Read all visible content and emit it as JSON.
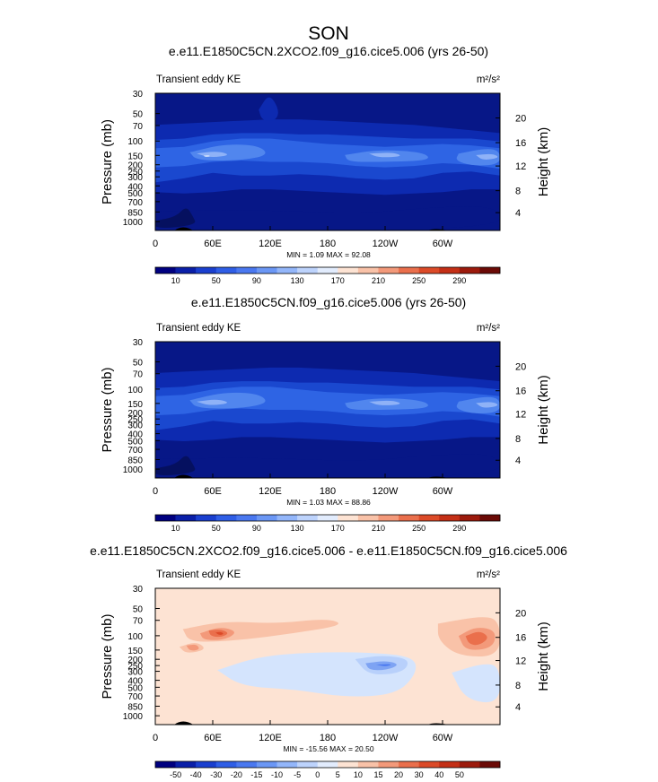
{
  "figure": {
    "season": "SON"
  },
  "chart_data": [
    {
      "type": "heatmap",
      "title": "e.e11.E1850C5CN.2XCO2.f09_g16.cice5.006 (yrs 26-50)",
      "left_label": "Transient eddy KE",
      "units": "m²/s²",
      "ylabel": "Pressure (mb)",
      "ylabel_right": "Height (km)",
      "x_ticks": [
        "0",
        "60E",
        "120E",
        "180",
        "120W",
        "60W"
      ],
      "y_ticks": [
        "30",
        "50",
        "70",
        "100",
        "150",
        "200",
        "250",
        "300",
        "400",
        "500",
        "700",
        "850",
        "1000"
      ],
      "y2_ticks": [
        "20",
        "16",
        "12",
        "8",
        "4"
      ],
      "stats": "MIN =   1.09  MAX =  92.08",
      "min": 1.09,
      "max": 92.08,
      "colorbar_labels": [
        "10",
        "50",
        "90",
        "130",
        "170",
        "210",
        "250",
        "290"
      ],
      "colorbar_colors": [
        "#000080",
        "#0a1fa8",
        "#1a3fcf",
        "#2f5ee6",
        "#4a78f0",
        "#6b97f5",
        "#93b6fa",
        "#bdd3fc",
        "#e2ecfd",
        "#fde3d3",
        "#f9c2a8",
        "#f3997a",
        "#ea6f4c",
        "#dc4a28",
        "#c42f16",
        "#9c1a0c",
        "#6b0a06"
      ],
      "colors": {
        "base": "#071787",
        "l1": "#0d2ab0",
        "l2": "#1a48cf",
        "l3": "#2e64e4",
        "l4": "#5186ee",
        "l5": "#8fb2f7",
        "l6": "#d2e2fc",
        "ground": "#000000"
      }
    },
    {
      "type": "heatmap",
      "title": "e.e11.E1850C5CN.f09_g16.cice5.006 (yrs 26-50)",
      "left_label": "Transient eddy KE",
      "units": "m²/s²",
      "ylabel": "Pressure (mb)",
      "ylabel_right": "Height (km)",
      "x_ticks": [
        "0",
        "60E",
        "120E",
        "180",
        "120W",
        "60W"
      ],
      "y_ticks": [
        "30",
        "50",
        "70",
        "100",
        "150",
        "200",
        "250",
        "300",
        "400",
        "500",
        "700",
        "850",
        "1000"
      ],
      "y2_ticks": [
        "20",
        "16",
        "12",
        "8",
        "4"
      ],
      "stats": "MIN =   1.03  MAX =  88.86",
      "min": 1.03,
      "max": 88.86,
      "colorbar_labels": [
        "10",
        "50",
        "90",
        "130",
        "170",
        "210",
        "250",
        "290"
      ],
      "colorbar_colors": [
        "#000080",
        "#0a1fa8",
        "#1a3fcf",
        "#2f5ee6",
        "#4a78f0",
        "#6b97f5",
        "#93b6fa",
        "#bdd3fc",
        "#e2ecfd",
        "#fde3d3",
        "#f9c2a8",
        "#f3997a",
        "#ea6f4c",
        "#dc4a28",
        "#c42f16",
        "#9c1a0c",
        "#6b0a06"
      ],
      "colors": {
        "base": "#071787",
        "l1": "#0d2ab0",
        "l2": "#1a48cf",
        "l3": "#2e64e4",
        "l4": "#5186ee",
        "l5": "#8fb2f7",
        "l6": "#d2e2fc",
        "ground": "#000000"
      }
    },
    {
      "type": "heatmap",
      "title": "e.e11.E1850C5CN.2XCO2.f09_g16.cice5.006 - e.e11.E1850C5CN.f09_g16.cice5.006",
      "left_label": "Transient eddy KE",
      "units": "m²/s²",
      "ylabel": "Pressure (mb)",
      "ylabel_right": "Height (km)",
      "x_ticks": [
        "0",
        "60E",
        "120E",
        "180",
        "120W",
        "60W"
      ],
      "y_ticks": [
        "30",
        "50",
        "70",
        "100",
        "150",
        "200",
        "250",
        "300",
        "400",
        "500",
        "700",
        "850",
        "1000"
      ],
      "y2_ticks": [
        "20",
        "16",
        "12",
        "8",
        "4"
      ],
      "stats": "MIN = -15.56  MAX =  20.50",
      "min": -15.56,
      "max": 20.5,
      "colorbar_labels": [
        "-50",
        "-40",
        "-30",
        "-20",
        "-15",
        "-10",
        "-5",
        "0",
        "5",
        "10",
        "15",
        "20",
        "30",
        "40",
        "50"
      ],
      "colorbar_colors": [
        "#000080",
        "#0a1fa8",
        "#1a3fcf",
        "#2f5ee6",
        "#4a78f0",
        "#6b97f5",
        "#93b6fa",
        "#bdd3fc",
        "#e2ecfd",
        "#fde3d3",
        "#f9c2a8",
        "#f3997a",
        "#ea6f4c",
        "#dc4a28",
        "#c42f16",
        "#9c1a0c",
        "#6b0a06"
      ],
      "colors": {
        "base": "#fde3d3",
        "neg1": "#d4e4fd",
        "neg2": "#b8d0fb",
        "neg3": "#7ea3f3",
        "neg4": "#4a78f0",
        "pos1": "#f9c2a8",
        "pos2": "#f3997a",
        "pos3": "#ea6f4c",
        "pos4": "#dc4a28",
        "ground": "#000000"
      }
    }
  ]
}
